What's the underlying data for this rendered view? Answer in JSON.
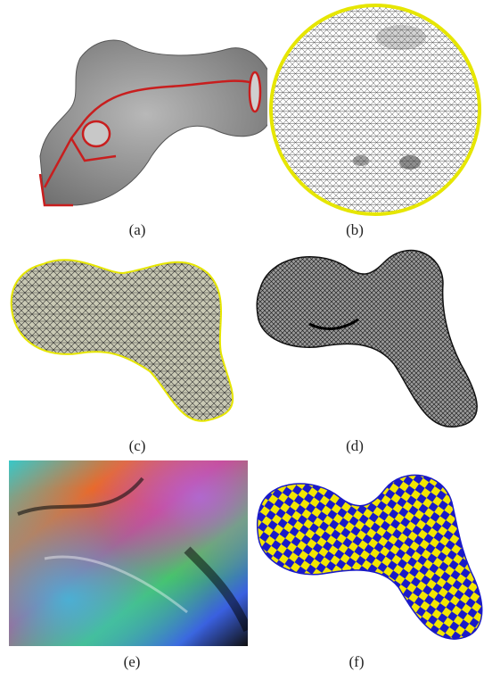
{
  "figure": {
    "panels": [
      {
        "id": "a",
        "label": "(a)"
      },
      {
        "id": "b",
        "label": "(b)"
      },
      {
        "id": "c",
        "label": "(c)"
      },
      {
        "id": "d",
        "label": "(d)"
      },
      {
        "id": "e",
        "label": "(e)"
      },
      {
        "id": "f",
        "label": "(f)"
      }
    ],
    "colors": {
      "bone_gray": "#8f8f8f",
      "cut_path_red": "#c81e1e",
      "mesh_yellow": "#e6e600",
      "mesh_black": "#111111",
      "checker_blue": "#1a1ac8",
      "checker_yellow": "#f2e600"
    }
  }
}
